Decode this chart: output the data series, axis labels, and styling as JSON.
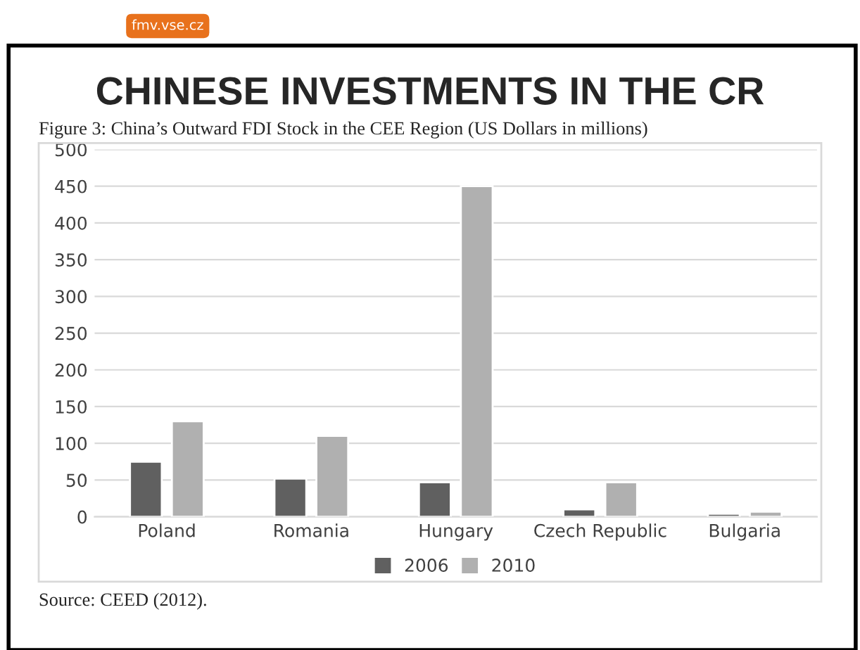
{
  "chart_data": {
    "type": "bar",
    "title": "CHINESE INVESTMENTS IN THE CR",
    "subtitle": "Figure 3: China’s Outward FDI Stock in the CEE Region (US Dollars in millions)",
    "categories": [
      "Poland",
      "Romania",
      "Hungary",
      "Czech Republic",
      "Bulgaria"
    ],
    "series": [
      {
        "name": "2006",
        "color": "#606060",
        "values": [
          75,
          52,
          47,
          10,
          4
        ]
      },
      {
        "name": "2010",
        "color": "#b0b0b0",
        "values": [
          130,
          110,
          450,
          47,
          7
        ]
      }
    ],
    "ylim": [
      0,
      500
    ],
    "yticks": [
      0,
      50,
      100,
      150,
      200,
      250,
      300,
      350,
      400,
      450,
      500
    ],
    "grid": "y",
    "legend": "bottom",
    "annotations": [
      "fmv.vse.cz",
      "Source: CEED (2012)."
    ]
  }
}
